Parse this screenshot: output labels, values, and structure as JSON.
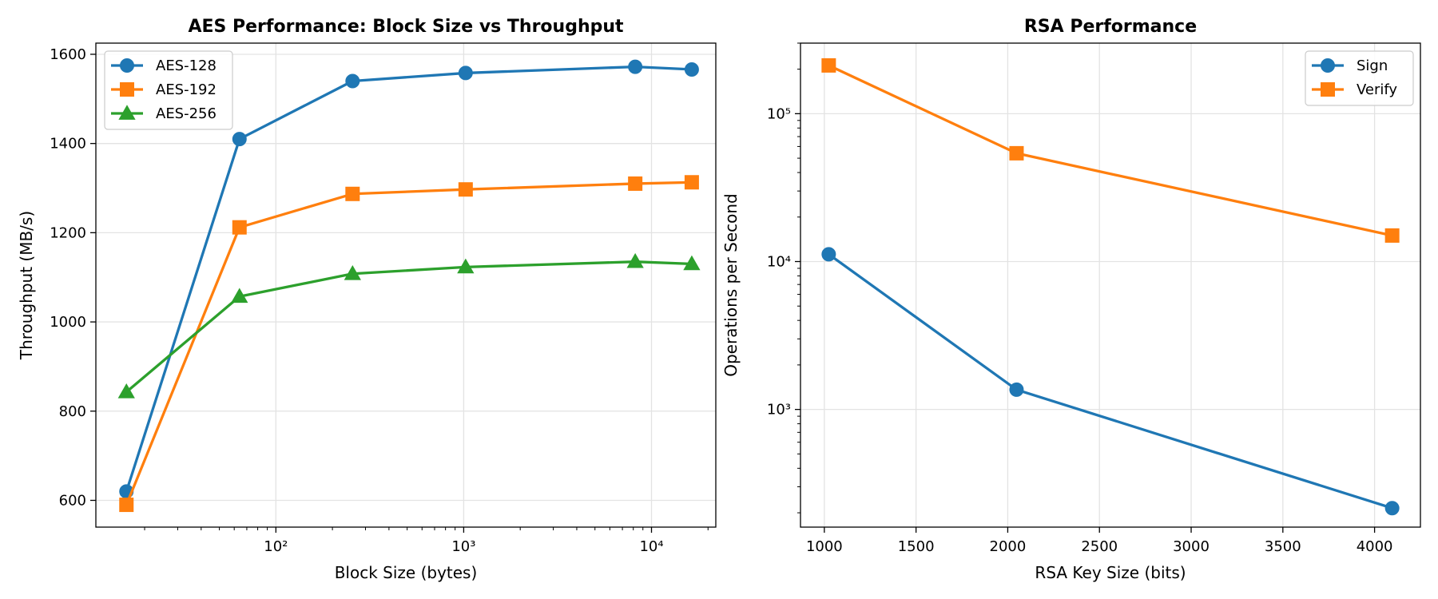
{
  "chart_data": [
    {
      "type": "line",
      "title": "AES Performance: Block Size vs Throughput",
      "xlabel": "Block Size (bytes)",
      "ylabel": "Throughput (MB/s)",
      "x_scale": "log",
      "y_scale": "linear",
      "xlim": [
        11,
        22000
      ],
      "ylim": [
        540,
        1625
      ],
      "x": [
        16,
        64,
        256,
        1024,
        8192,
        16384
      ],
      "series": [
        {
          "name": "AES-128",
          "color": "#1f77b4",
          "marker": "circle",
          "values": [
            620,
            1410,
            1540,
            1558,
            1572,
            1566
          ]
        },
        {
          "name": "AES-192",
          "color": "#ff7f0e",
          "marker": "square",
          "values": [
            590,
            1212,
            1287,
            1297,
            1310,
            1313
          ]
        },
        {
          "name": "AES-256",
          "color": "#2ca02c",
          "marker": "triangle",
          "values": [
            843,
            1057,
            1108,
            1123,
            1135,
            1130
          ]
        }
      ],
      "x_ticks": [
        {
          "value": 100,
          "label": "10²"
        },
        {
          "value": 1000,
          "label": "10³"
        },
        {
          "value": 10000,
          "label": "10⁴"
        }
      ],
      "y_ticks": [
        {
          "value": 600,
          "label": "600"
        },
        {
          "value": 800,
          "label": "800"
        },
        {
          "value": 1000,
          "label": "1000"
        },
        {
          "value": 1200,
          "label": "1200"
        },
        {
          "value": 1400,
          "label": "1400"
        },
        {
          "value": 1600,
          "label": "1600"
        }
      ],
      "grid": true,
      "legend": "top-left"
    },
    {
      "type": "line",
      "title": "RSA Performance",
      "xlabel": "RSA Key Size (bits)",
      "ylabel": "Operations per Second",
      "x_scale": "linear",
      "y_scale": "log",
      "xlim": [
        870,
        4250
      ],
      "ylim": [
        160,
        300000
      ],
      "x": [
        1024,
        2048,
        4096
      ],
      "series": [
        {
          "name": "Sign",
          "color": "#1f77b4",
          "marker": "circle",
          "values": [
            11200,
            1360,
            215
          ]
        },
        {
          "name": "Verify",
          "color": "#ff7f0e",
          "marker": "square",
          "values": [
            212000,
            54000,
            15000
          ]
        }
      ],
      "x_ticks": [
        {
          "value": 1000,
          "label": "1000"
        },
        {
          "value": 1500,
          "label": "1500"
        },
        {
          "value": 2000,
          "label": "2000"
        },
        {
          "value": 2500,
          "label": "2500"
        },
        {
          "value": 3000,
          "label": "3000"
        },
        {
          "value": 3500,
          "label": "3500"
        },
        {
          "value": 4000,
          "label": "4000"
        }
      ],
      "y_ticks": [
        {
          "value": 1000,
          "label": "10³"
        },
        {
          "value": 10000,
          "label": "10⁴"
        },
        {
          "value": 100000,
          "label": "10⁵"
        }
      ],
      "grid": true,
      "legend": "top-right"
    }
  ]
}
